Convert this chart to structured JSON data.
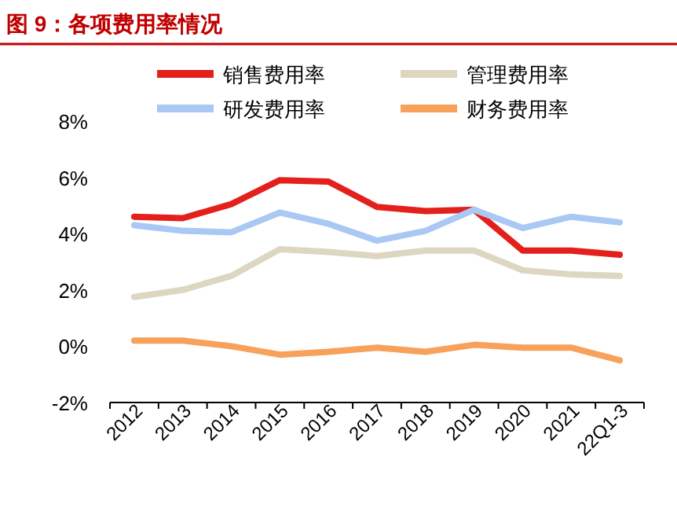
{
  "chart_data": {
    "type": "line",
    "title": "图 9：各项费用率情况",
    "categories": [
      "2012",
      "2013",
      "2014",
      "2015",
      "2016",
      "2017",
      "2018",
      "2019",
      "2020",
      "2021",
      "22Q1-3"
    ],
    "series": [
      {
        "name": "销售费用率",
        "color": "#e3201b",
        "values": [
          4.6,
          4.55,
          5.05,
          5.9,
          5.85,
          4.95,
          4.8,
          4.85,
          3.4,
          3.4,
          3.25
        ]
      },
      {
        "name": "管理费用率",
        "color": "#ddd6c1",
        "values": [
          1.75,
          2.0,
          2.5,
          3.45,
          3.35,
          3.2,
          3.4,
          3.4,
          2.7,
          2.55,
          2.5
        ]
      },
      {
        "name": "研发费用率",
        "color": "#a9c8f4",
        "values": [
          4.3,
          4.1,
          4.05,
          4.75,
          4.35,
          3.75,
          4.1,
          4.85,
          4.2,
          4.6,
          4.4
        ]
      },
      {
        "name": "财务费用率",
        "color": "#f7a15a",
        "values": [
          0.2,
          0.2,
          0.0,
          -0.3,
          -0.2,
          -0.05,
          -0.2,
          0.05,
          -0.05,
          -0.05,
          -0.5
        ]
      }
    ],
    "ylim": [
      -2,
      8
    ],
    "yticks": [
      {
        "value": -2,
        "label": "-2%"
      },
      {
        "value": 0,
        "label": "0%"
      },
      {
        "value": 2,
        "label": "2%"
      },
      {
        "value": 4,
        "label": "4%"
      },
      {
        "value": 6,
        "label": "6%"
      },
      {
        "value": 8,
        "label": "8%"
      }
    ],
    "grid": false,
    "legend": "top",
    "marker": "none",
    "line_style": "solid"
  }
}
